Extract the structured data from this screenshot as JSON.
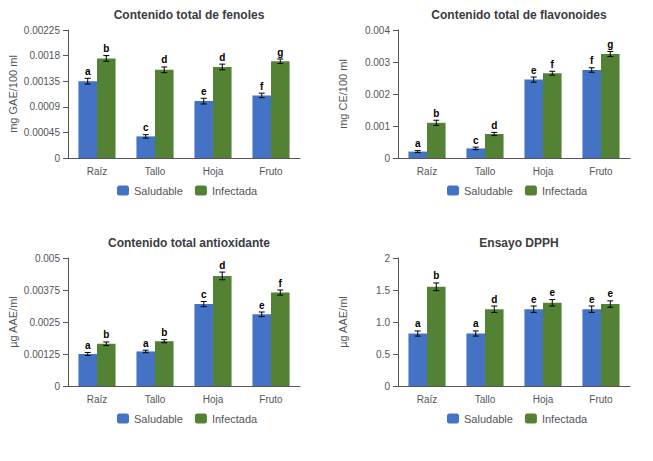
{
  "chart_data": [
    {
      "type": "bar",
      "title": "Contenido total de fenoles",
      "ylabel": "mg GAE/100 ml",
      "categories": [
        "Raíz",
        "Tallo",
        "Hoja",
        "Fruto"
      ],
      "series": [
        {
          "name": "Saludable",
          "color": "#4472C4",
          "values": [
            0.00135,
            0.00038,
            0.001,
            0.0011
          ],
          "errors": [
            5e-05,
            3e-05,
            5e-05,
            4e-05
          ],
          "annotations": [
            "a",
            "c",
            "e",
            "f"
          ]
        },
        {
          "name": "Infectada",
          "color": "#548235",
          "values": [
            0.00175,
            0.00155,
            0.0016,
            0.0017
          ],
          "errors": [
            5e-05,
            5e-05,
            5e-05,
            4e-05
          ],
          "annotations": [
            "b",
            "d",
            "d",
            "g"
          ]
        }
      ],
      "ylim": [
        0,
        0.00225
      ],
      "yticks": [
        0,
        0.00045,
        0.0009,
        0.00135,
        0.0018,
        0.00225
      ],
      "grid": false,
      "legend": "bottom"
    },
    {
      "type": "bar",
      "title": "Contenido total de flavonoides",
      "ylabel": "mg CE/100 ml",
      "categories": [
        "Raíz",
        "Tallo",
        "Hoja",
        "Fruto"
      ],
      "series": [
        {
          "name": "Saludable",
          "color": "#4472C4",
          "values": [
            0.0002,
            0.0003,
            0.00245,
            0.00275
          ],
          "errors": [
            3e-05,
            4e-05,
            8e-05,
            7e-05
          ],
          "annotations": [
            "a",
            "c",
            "e",
            "f"
          ]
        },
        {
          "name": "Infectada",
          "color": "#548235",
          "values": [
            0.0011,
            0.00075,
            0.00265,
            0.00325
          ],
          "errors": [
            8e-05,
            5e-05,
            6e-05,
            8e-05
          ],
          "annotations": [
            "b",
            "d",
            "f",
            "g"
          ]
        }
      ],
      "ylim": [
        0,
        0.004
      ],
      "yticks": [
        0,
        0.001,
        0.002,
        0.003,
        0.004
      ],
      "grid": false,
      "legend": "bottom"
    },
    {
      "type": "bar",
      "title": "Contenido total antioxidante",
      "ylabel": "µg AAE/ml",
      "categories": [
        "Raíz",
        "Tallo",
        "Hoja",
        "Fruto"
      ],
      "series": [
        {
          "name": "Saludable",
          "color": "#4472C4",
          "values": [
            0.00125,
            0.00135,
            0.0032,
            0.0028
          ],
          "errors": [
            6e-05,
            5e-05,
            0.0001,
            9e-05
          ],
          "annotations": [
            "a",
            "a",
            "c",
            "e"
          ]
        },
        {
          "name": "Infectada",
          "color": "#548235",
          "values": [
            0.00165,
            0.00175,
            0.0043,
            0.00365
          ],
          "errors": [
            7e-05,
            6e-05,
            0.00015,
            0.0001
          ],
          "annotations": [
            "b",
            "b",
            "d",
            "f"
          ]
        }
      ],
      "ylim": [
        0,
        0.005
      ],
      "yticks": [
        0,
        0.00125,
        0.0025,
        0.00375,
        0.005
      ],
      "grid": false,
      "legend": "bottom"
    },
    {
      "type": "bar",
      "title": "Ensayo DPPH",
      "ylabel": "µg AAE/ml",
      "categories": [
        "Raíz",
        "Tallo",
        "Hoja",
        "Fruto"
      ],
      "series": [
        {
          "name": "Saludable",
          "color": "#4472C4",
          "values": [
            0.82,
            0.82,
            1.2,
            1.2
          ],
          "errors": [
            0.04,
            0.04,
            0.05,
            0.05
          ],
          "annotations": [
            "a",
            "a",
            "e",
            "e"
          ]
        },
        {
          "name": "Infectada",
          "color": "#548235",
          "values": [
            1.55,
            1.2,
            1.3,
            1.28
          ],
          "errors": [
            0.06,
            0.05,
            0.05,
            0.05
          ],
          "annotations": [
            "b",
            "d",
            "e",
            "e"
          ]
        }
      ],
      "ylim": [
        0,
        2.0
      ],
      "yticks": [
        0,
        0.5,
        {
          "value": 1.0,
          "label": "1.0"
        },
        1.5,
        2
      ],
      "grid": false,
      "legend": "bottom"
    }
  ]
}
